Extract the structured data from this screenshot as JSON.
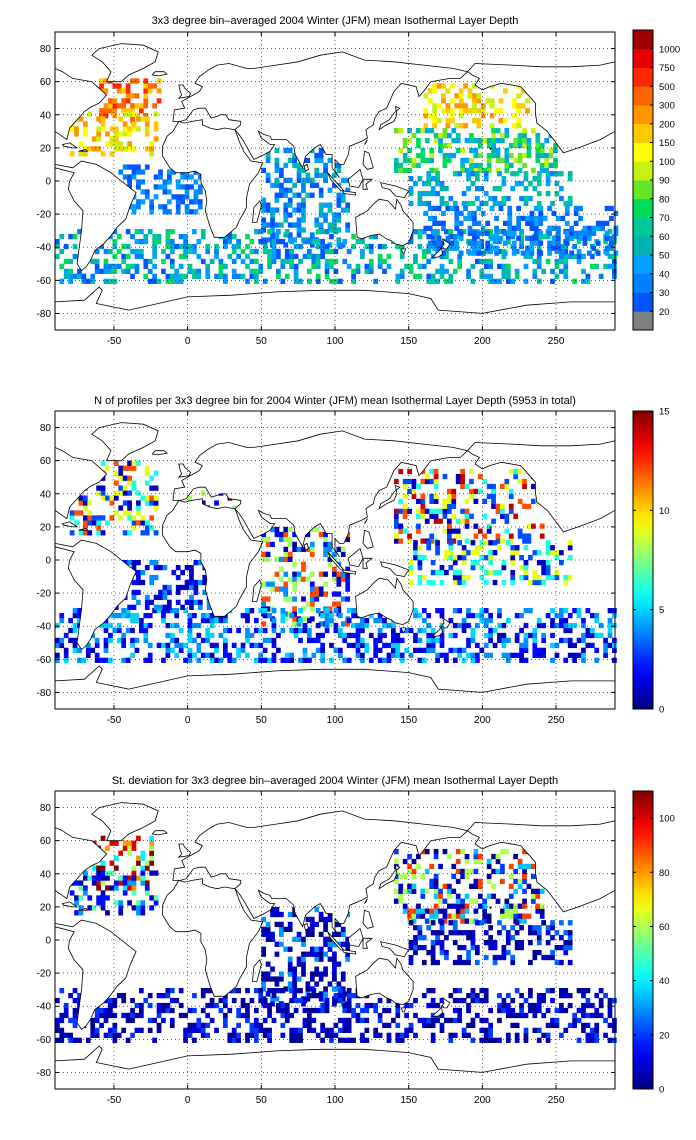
{
  "figure": {
    "panels": [
      {
        "title": "3x3 degree bin–averaged 2004 Winter (JFM) mean Isothermal Layer Depth",
        "colorbar": {
          "type": "categorical",
          "tick_labels": [
            "20",
            "30",
            "40",
            "50",
            "60",
            "70",
            "80",
            "90",
            "100",
            "150",
            "200",
            "300",
            "500",
            "750",
            "1000"
          ],
          "colors": [
            "#808080",
            "#0055ff",
            "#0080ff",
            "#00a0ff",
            "#00b4b4",
            "#00c896",
            "#00dc5a",
            "#64e628",
            "#c8f014",
            "#ffff00",
            "#ffc800",
            "#ff9600",
            "#ff6400",
            "#ff2800",
            "#e60000",
            "#a00000"
          ]
        },
        "chart_data": {
          "type": "heatmap",
          "title": "3x3 degree bin–averaged 2004 Winter (JFM) mean Isothermal Layer Depth",
          "xlabel": "",
          "ylabel": "",
          "xlim": [
            -90,
            290
          ],
          "ylim": [
            -90,
            90
          ],
          "x_ticks": [
            -50,
            0,
            50,
            100,
            150,
            200,
            250
          ],
          "y_ticks": [
            80,
            60,
            40,
            20,
            0,
            -20,
            -40,
            -60,
            -80
          ],
          "grid": true,
          "bin_size_deg": 3,
          "value_units": "class index into colorbar (0 = <20, 15 = >1000)",
          "regions": [
            {
              "name": "north-atlantic-deep",
              "lon": [
                -60,
                -20
              ],
              "lat": [
                35,
                60
              ],
              "values": [
                10,
                11,
                12,
                12,
                13
              ]
            },
            {
              "name": "north-atlantic-subtropical",
              "lon": [
                -80,
                -20
              ],
              "lat": [
                15,
                40
              ],
              "values": [
                8,
                9,
                10,
                11
              ]
            },
            {
              "name": "north-pacific-deep",
              "lon": [
                160,
                230
              ],
              "lat": [
                32,
                58
              ],
              "values": [
                8,
                9,
                10,
                11
              ]
            },
            {
              "name": "north-pacific-subtropical",
              "lon": [
                140,
                250
              ],
              "lat": [
                5,
                32
              ],
              "values": [
                3,
                4,
                5,
                6,
                7,
                8
              ]
            },
            {
              "name": "tropical-pacific",
              "lon": [
                150,
                260
              ],
              "lat": [
                -15,
                5
              ],
              "values": [
                2,
                3,
                4,
                5
              ]
            },
            {
              "name": "tropical-atlantic",
              "lon": [
                -50,
                10
              ],
              "lat": [
                -20,
                10
              ],
              "values": [
                1,
                2,
                3
              ]
            },
            {
              "name": "indian-ocean",
              "lon": [
                50,
                110
              ],
              "lat": [
                -40,
                20
              ],
              "values": [
                1,
                2,
                3,
                4
              ]
            },
            {
              "name": "southern-ocean",
              "lon": [
                -90,
                290
              ],
              "lat": [
                -62,
                -30
              ],
              "values": [
                1,
                2,
                3,
                4,
                5,
                6
              ]
            },
            {
              "name": "south-pacific",
              "lon": [
                160,
                290
              ],
              "lat": [
                -45,
                -15
              ],
              "values": [
                1,
                2,
                3
              ]
            }
          ]
        }
      },
      {
        "title": "N of profiles per 3x3 degree bin for 2004 Winter (JFM) mean Isothermal Layer Depth  (5953 in total)",
        "colorbar": {
          "type": "jet",
          "tick_labels": [
            "0",
            "5",
            "10",
            "15"
          ],
          "tick_values": [
            0,
            5,
            10,
            15
          ],
          "range": [
            0,
            15
          ]
        },
        "chart_data": {
          "type": "heatmap",
          "title": "N of profiles per 3x3 degree bin for 2004 Winter (JFM) mean Isothermal Layer Depth  (5953 in total)",
          "xlabel": "",
          "ylabel": "",
          "xlim": [
            -90,
            290
          ],
          "ylim": [
            -90,
            90
          ],
          "x_ticks": [
            -50,
            0,
            50,
            100,
            150,
            200,
            250
          ],
          "y_ticks": [
            80,
            60,
            40,
            20,
            0,
            -20,
            -40,
            -60,
            -80
          ],
          "grid": true,
          "bin_size_deg": 3,
          "total_profiles": 5953,
          "clim": [
            0,
            15
          ],
          "regions": [
            {
              "name": "north-atlantic",
              "lon": [
                -80,
                -20
              ],
              "lat": [
                15,
                60
              ],
              "values": [
                1,
                3,
                6,
                9,
                12
              ]
            },
            {
              "name": "mediterranean",
              "lon": [
                0,
                36
              ],
              "lat": [
                30,
                42
              ],
              "values": [
                2,
                8,
                15
              ]
            },
            {
              "name": "north-pacific",
              "lon": [
                140,
                240
              ],
              "lat": [
                10,
                55
              ],
              "values": [
                1,
                3,
                6,
                9,
                12,
                14
              ]
            },
            {
              "name": "tropical-pacific",
              "lon": [
                150,
                260
              ],
              "lat": [
                -15,
                10
              ],
              "values": [
                1,
                3,
                6,
                9
              ]
            },
            {
              "name": "indian-ocean",
              "lon": [
                50,
                110
              ],
              "lat": [
                -40,
                20
              ],
              "values": [
                1,
                2,
                4,
                8,
                12
              ]
            },
            {
              "name": "southern-ocean",
              "lon": [
                -90,
                290
              ],
              "lat": [
                -62,
                -30
              ],
              "values": [
                1,
                2,
                4,
                5
              ]
            },
            {
              "name": "south-atlantic",
              "lon": [
                -50,
                20
              ],
              "lat": [
                -30,
                0
              ],
              "values": [
                1,
                2,
                4
              ]
            }
          ]
        }
      },
      {
        "title": "St. deviation for 3x3 degree bin–averaged 2004 Winter (JFM) mean Isothermal Layer Depth",
        "colorbar": {
          "type": "jet",
          "tick_labels": [
            "0",
            "20",
            "40",
            "60",
            "80",
            "100"
          ],
          "tick_values": [
            0,
            20,
            40,
            60,
            80,
            100
          ],
          "range": [
            0,
            110
          ]
        },
        "chart_data": {
          "type": "heatmap",
          "title": "St. deviation for 3x3 degree bin–averaged 2004 Winter (JFM) mean Isothermal Layer Depth",
          "xlabel": "",
          "ylabel": "",
          "xlim": [
            -90,
            290
          ],
          "ylim": [
            -90,
            90
          ],
          "x_ticks": [
            -50,
            0,
            50,
            100,
            150,
            200,
            250
          ],
          "y_ticks": [
            80,
            60,
            40,
            20,
            0,
            -20,
            -40,
            -60,
            -80
          ],
          "grid": true,
          "bin_size_deg": 3,
          "clim": [
            0,
            110
          ],
          "regions": [
            {
              "name": "north-atlantic-high",
              "lon": [
                -65,
                -25
              ],
              "lat": [
                30,
                62
              ],
              "values": [
                40,
                60,
                80,
                100,
                110
              ]
            },
            {
              "name": "north-atlantic",
              "lon": [
                -80,
                -20
              ],
              "lat": [
                15,
                40
              ],
              "values": [
                5,
                15,
                30,
                50
              ]
            },
            {
              "name": "north-pacific",
              "lon": [
                140,
                240
              ],
              "lat": [
                10,
                55
              ],
              "values": [
                2,
                8,
                20,
                35,
                60,
                90
              ]
            },
            {
              "name": "tropical-pacific",
              "lon": [
                150,
                260
              ],
              "lat": [
                -15,
                10
              ],
              "values": [
                2,
                5,
                10,
                25
              ]
            },
            {
              "name": "indian-ocean",
              "lon": [
                50,
                110
              ],
              "lat": [
                -40,
                20
              ],
              "values": [
                2,
                5,
                10,
                30
              ]
            },
            {
              "name": "southern-ocean",
              "lon": [
                -90,
                290
              ],
              "lat": [
                -62,
                -30
              ],
              "values": [
                2,
                5,
                10,
                20
              ]
            }
          ]
        }
      }
    ]
  }
}
